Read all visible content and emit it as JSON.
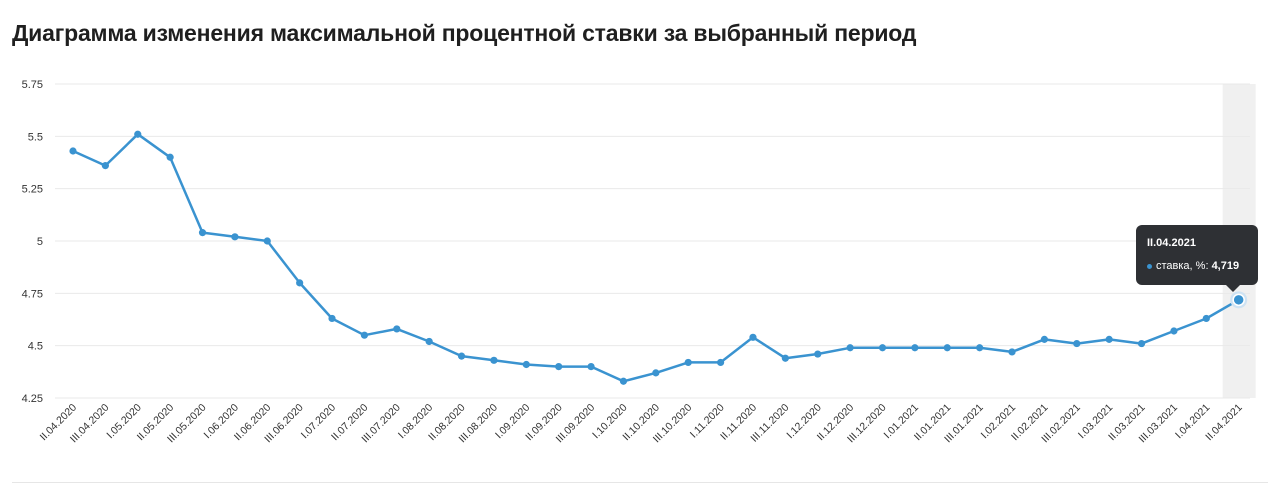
{
  "page": {
    "title": "Диаграмма изменения максимальной процентной ставки за выбранный период"
  },
  "tooltip": {
    "date": "II.04.2021",
    "series_label": "ставка, %:",
    "value": "4,719"
  },
  "colors": {
    "line": "#3a93d0",
    "grid": "#e9e9e9",
    "highlight_band": "#f0f0f0",
    "tooltip_bg": "#2e3034"
  },
  "chart_data": {
    "type": "line",
    "title": "Диаграмма изменения максимальной процентной ставки за выбранный период",
    "xlabel": "",
    "ylabel": "",
    "ylim": [
      4.25,
      5.75
    ],
    "yticks": [
      "4.25",
      "4.5",
      "4.75",
      "5",
      "5.25",
      "5.5",
      "5.75"
    ],
    "grid": true,
    "highlighted_category": "II.04.2021",
    "categories": [
      "II.04.2020",
      "III.04.2020",
      "I.05.2020",
      "II.05.2020",
      "III.05.2020",
      "I.06.2020",
      "II.06.2020",
      "III.06.2020",
      "I.07.2020",
      "II.07.2020",
      "III.07.2020",
      "I.08.2020",
      "II.08.2020",
      "III.08.2020",
      "I.09.2020",
      "II.09.2020",
      "III.09.2020",
      "I.10.2020",
      "II.10.2020",
      "III.10.2020",
      "I.11.2020",
      "II.11.2020",
      "III.11.2020",
      "I.12.2020",
      "II.12.2020",
      "III.12.2020",
      "I.01.2021",
      "II.01.2021",
      "III.01.2021",
      "I.02.2021",
      "II.02.2021",
      "III.02.2021",
      "I.03.2021",
      "II.03.2021",
      "III.03.2021",
      "I.04.2021",
      "II.04.2021"
    ],
    "series": [
      {
        "values": [
          5.43,
          5.36,
          5.51,
          5.4,
          5.04,
          5.02,
          5.0,
          4.8,
          4.63,
          4.55,
          4.58,
          4.52,
          4.45,
          4.43,
          4.41,
          4.4,
          4.4,
          4.33,
          4.37,
          4.42,
          4.42,
          4.54,
          4.44,
          4.46,
          4.49,
          4.49,
          4.49,
          4.49,
          4.49,
          4.47,
          4.53,
          4.51,
          4.53,
          4.51,
          4.57,
          4.63,
          4.719
        ]
      }
    ]
  }
}
